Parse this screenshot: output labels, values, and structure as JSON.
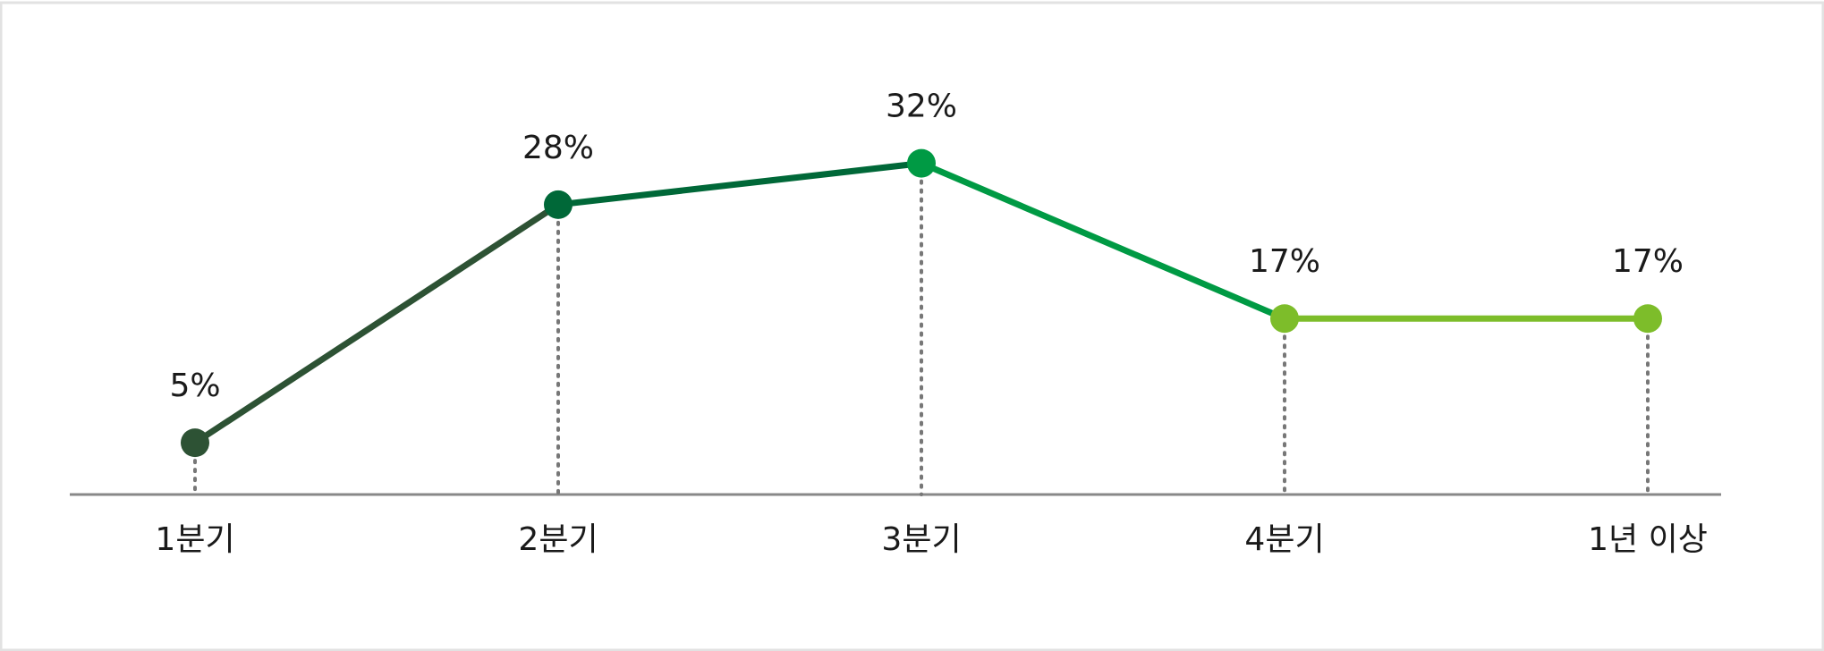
{
  "chart_data": {
    "type": "line",
    "categories": [
      "1분기",
      "2분기",
      "3분기",
      "4분기",
      "1년 이상"
    ],
    "values": [
      5,
      28,
      32,
      17,
      17
    ],
    "value_labels": [
      "5%",
      "28%",
      "32%",
      "17%",
      "17%"
    ],
    "colors": [
      "#2d5234",
      "#006838",
      "#009a44",
      "#7dbd2a",
      "#7dbd2a"
    ],
    "ylim": [
      0,
      40
    ]
  }
}
